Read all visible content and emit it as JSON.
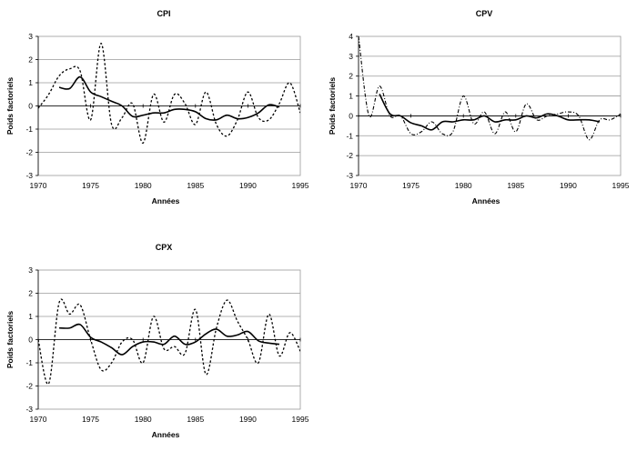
{
  "chart_data": [
    {
      "type": "line",
      "title": "CPI",
      "xlabel": "Années",
      "ylabel": "Poids factoriels",
      "xlim": [
        1970,
        1995
      ],
      "ylim": [
        -3,
        3
      ],
      "xticks": [
        1970,
        1975,
        1980,
        1985,
        1990,
        1995
      ],
      "yticks": [
        -3,
        -2,
        -1,
        0,
        1,
        2,
        3
      ],
      "grid": true,
      "series": [
        {
          "style": "dotted",
          "x": [
            1970,
            1971,
            1972,
            1973,
            1974,
            1975,
            1976,
            1977,
            1978,
            1979,
            1980,
            1981,
            1982,
            1983,
            1984,
            1985,
            1986,
            1987,
            1988,
            1989,
            1990,
            1991,
            1992,
            1993,
            1994,
            1995
          ],
          "y": [
            -0.1,
            0.5,
            1.3,
            1.6,
            1.5,
            -0.6,
            2.7,
            -0.8,
            -0.5,
            0.1,
            -1.6,
            0.5,
            -0.7,
            0.5,
            0.1,
            -0.8,
            0.6,
            -0.8,
            -1.3,
            -0.6,
            0.6,
            -0.5,
            -0.6,
            0.1,
            1.0,
            -0.3
          ]
        },
        {
          "style": "solid",
          "x": [
            1972,
            1973,
            1974,
            1975,
            1976,
            1977,
            1978,
            1979,
            1980,
            1981,
            1982,
            1983,
            1984,
            1985,
            1986,
            1987,
            1988,
            1989,
            1990,
            1991,
            1992,
            1993
          ],
          "y": [
            0.8,
            0.75,
            1.25,
            0.6,
            0.4,
            0.2,
            0.0,
            -0.45,
            -0.4,
            -0.3,
            -0.3,
            -0.15,
            -0.15,
            -0.25,
            -0.55,
            -0.6,
            -0.4,
            -0.55,
            -0.5,
            -0.3,
            0.05,
            -0.05
          ]
        }
      ]
    },
    {
      "type": "line",
      "title": "CPV",
      "xlabel": "Années",
      "ylabel": "Poids factoriels",
      "xlim": [
        1970,
        1995
      ],
      "ylim": [
        -3,
        4
      ],
      "xticks": [
        1970,
        1975,
        1980,
        1985,
        1990,
        1995
      ],
      "yticks": [
        -3,
        -2,
        -1,
        0,
        1,
        2,
        3,
        4
      ],
      "grid": true,
      "series": [
        {
          "style": "dashdot",
          "x": [
            1970,
            1971,
            1972,
            1973,
            1974,
            1975,
            1976,
            1977,
            1978,
            1979,
            1980,
            1981,
            1982,
            1983,
            1984,
            1985,
            1986,
            1987,
            1988,
            1989,
            1990,
            1991,
            1992,
            1993,
            1994,
            1995
          ],
          "y": [
            4.0,
            0.0,
            1.5,
            0.0,
            0.0,
            -0.9,
            -0.8,
            -0.3,
            -0.9,
            -0.8,
            1.0,
            -0.4,
            0.2,
            -0.9,
            0.2,
            -0.8,
            0.6,
            -0.2,
            0.0,
            0.1,
            0.2,
            0.0,
            -1.2,
            -0.2,
            -0.2,
            0.1
          ]
        },
        {
          "style": "solid",
          "x": [
            1972,
            1973,
            1974,
            1975,
            1976,
            1977,
            1978,
            1979,
            1980,
            1981,
            1982,
            1983,
            1984,
            1985,
            1986,
            1987,
            1988,
            1989,
            1990,
            1991,
            1992,
            1993
          ],
          "y": [
            1.1,
            0.1,
            0.0,
            -0.35,
            -0.5,
            -0.7,
            -0.3,
            -0.3,
            -0.2,
            -0.2,
            0.0,
            -0.3,
            -0.2,
            -0.2,
            0.0,
            -0.1,
            0.1,
            0.0,
            -0.2,
            -0.2,
            -0.2,
            -0.3
          ]
        }
      ]
    },
    {
      "type": "line",
      "title": "CPX",
      "xlabel": "Années",
      "ylabel": "Poids factoriels",
      "xlim": [
        1970,
        1995
      ],
      "ylim": [
        -3,
        3
      ],
      "xticks": [
        1970,
        1975,
        1980,
        1985,
        1990,
        1995
      ],
      "yticks": [
        -3,
        -2,
        -1,
        0,
        1,
        2,
        3
      ],
      "grid": true,
      "series": [
        {
          "style": "dotted",
          "x": [
            1970,
            1971,
            1972,
            1973,
            1974,
            1975,
            1976,
            1977,
            1978,
            1979,
            1980,
            1981,
            1982,
            1983,
            1984,
            1985,
            1986,
            1987,
            1988,
            1989,
            1990,
            1991,
            1992,
            1993,
            1994,
            1995
          ],
          "y": [
            0.0,
            -1.9,
            1.6,
            1.1,
            1.5,
            0.0,
            -1.3,
            -1.0,
            -0.1,
            0.0,
            -1.0,
            1.0,
            -0.4,
            -0.3,
            -0.6,
            1.3,
            -1.5,
            0.5,
            1.7,
            0.8,
            0.0,
            -1.0,
            1.1,
            -0.7,
            0.3,
            -0.5
          ]
        },
        {
          "style": "solid",
          "x": [
            1972,
            1973,
            1974,
            1975,
            1976,
            1977,
            1978,
            1979,
            1980,
            1981,
            1982,
            1983,
            1984,
            1985,
            1986,
            1987,
            1988,
            1989,
            1990,
            1991,
            1992,
            1993
          ],
          "y": [
            0.5,
            0.5,
            0.65,
            0.1,
            -0.1,
            -0.35,
            -0.65,
            -0.3,
            -0.1,
            -0.1,
            -0.2,
            0.15,
            -0.2,
            -0.1,
            0.25,
            0.45,
            0.15,
            0.2,
            0.35,
            -0.05,
            -0.15,
            -0.2
          ]
        }
      ]
    }
  ]
}
